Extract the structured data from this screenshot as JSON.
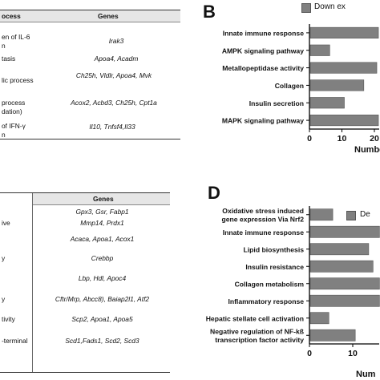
{
  "table_a": {
    "header": {
      "process": "ocess",
      "genes": "Genes"
    },
    "rows": [
      {
        "process": "en of IL-6",
        "process2": "n",
        "genes": "Irak3"
      },
      {
        "process": "tasis",
        "process2": "",
        "genes": "Apoa4, Acadm"
      },
      {
        "process": "lic process",
        "process2": "",
        "genes": "Ch25h, Vldlr, Apoa4, Mvk"
      },
      {
        "process": "process",
        "process2": "dation)",
        "genes": "Acox2, Acbd3, Ch25h, Cpt1a"
      },
      {
        "process": "of IFN-γ",
        "process2": "n",
        "genes": "Il10, Tnfsf4,Il33"
      }
    ]
  },
  "table_c": {
    "header": {
      "process": "",
      "genes": "Genes"
    },
    "rows": [
      {
        "process": "",
        "genes": "Gpx3, Gsr, Fabp1"
      },
      {
        "process": "ive",
        "genes": "Mmp14, Prdx1"
      },
      {
        "process": "",
        "genes": "Acaca, Apoa1, Acox1"
      },
      {
        "process": "y",
        "genes": "Crebbp"
      },
      {
        "process": "",
        "genes": "Lbp, Hdl, Apoc4"
      },
      {
        "process": "y",
        "genes": "Cftr/Mrp, Abcc8), Baiap2l1, Atf2"
      },
      {
        "process": "tivity",
        "genes": "Scp2, Apoa1, Apoa5"
      },
      {
        "process": "-terminal",
        "genes": "Scd1,Fads1, Scd2, Scd3"
      }
    ]
  },
  "panel_b": {
    "letter": "B",
    "legend": "Down ex"
  },
  "panel_d": {
    "letter": "D",
    "legend": "De"
  },
  "chart_data": [
    {
      "type": "bar",
      "orientation": "horizontal",
      "categories": [
        "Innate immune response",
        "AMPK signaling pathway",
        "Metallopeptidase activity",
        "Collagen",
        "Insulin secretion",
        "MAPK signaling pathway"
      ],
      "series": [
        {
          "name": "Down ex",
          "values": [
            21,
            6,
            20.5,
            16.5,
            10.5,
            21
          ]
        }
      ],
      "xlabel": "Numbe",
      "xticks": [
        "0",
        "10",
        "20"
      ],
      "xlim": [
        0,
        21
      ],
      "color": "#808080"
    },
    {
      "type": "bar",
      "orientation": "horizontal",
      "categories": [
        "Oxidative stress induced gene expression Via Nrf2",
        "Innate immune response",
        "Lipid biosynthesis",
        "Insulin resistance",
        "Collagen metabolism",
        "Inflammatory response",
        "Hepatic stellate cell activation",
        "Negative regulation of NF-kß transcription factor activity"
      ],
      "series": [
        {
          "name": "De",
          "values": [
            5.2,
            16,
            13.5,
            14.5,
            16,
            16,
            4.3,
            10.4
          ]
        }
      ],
      "xlabel": "Num",
      "xticks": [
        "0",
        "10"
      ],
      "xlim": [
        0,
        16
      ],
      "color": "#808080"
    }
  ]
}
